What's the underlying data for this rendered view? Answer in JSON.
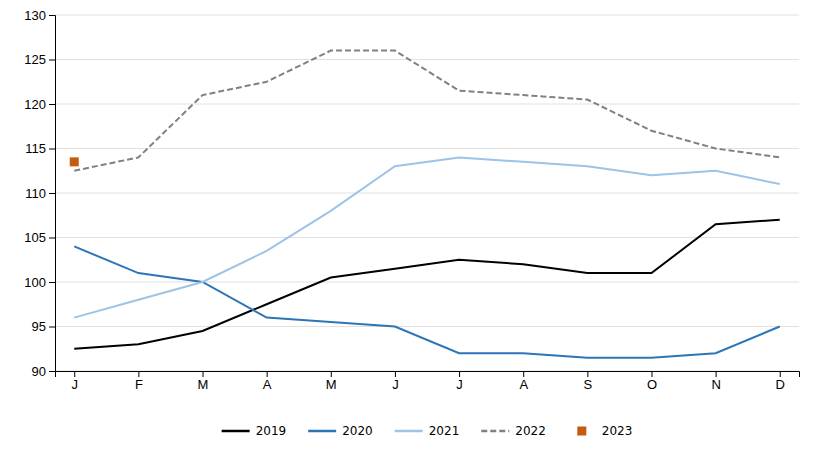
{
  "chart_data": {
    "type": "line",
    "categories": [
      "J",
      "F",
      "M",
      "A",
      "M",
      "J",
      "J",
      "A",
      "S",
      "O",
      "N",
      "D"
    ],
    "series": [
      {
        "name": "2019",
        "color": "#000000",
        "line_style": "solid",
        "values": [
          92.5,
          93.0,
          94.5,
          97.5,
          100.5,
          101.5,
          102.5,
          102.0,
          101.0,
          101.0,
          106.5,
          107.0
        ]
      },
      {
        "name": "2020",
        "color": "#2e75b6",
        "line_style": "solid",
        "values": [
          104.0,
          101.0,
          100.0,
          96.0,
          95.5,
          95.0,
          92.0,
          92.0,
          91.5,
          91.5,
          92.0,
          95.0
        ]
      },
      {
        "name": "2021",
        "color": "#9dc3e6",
        "line_style": "solid",
        "values": [
          96.0,
          98.0,
          100.0,
          103.5,
          108.0,
          113.0,
          114.0,
          113.5,
          113.0,
          112.0,
          112.5,
          111.0
        ]
      },
      {
        "name": "2022",
        "color": "#808080",
        "line_style": "dashed",
        "values": [
          112.5,
          114.0,
          121.0,
          122.5,
          126.0,
          126.0,
          121.5,
          121.0,
          120.5,
          117.0,
          115.0,
          114.0
        ]
      },
      {
        "name": "2023",
        "color": "#c55a11",
        "line_style": "none",
        "marker": "square",
        "values": [
          113.5,
          null,
          null,
          null,
          null,
          null,
          null,
          null,
          null,
          null,
          null,
          null
        ]
      }
    ],
    "ylim": [
      90,
      130
    ],
    "yticks": [
      90,
      95,
      100,
      105,
      110,
      115,
      120,
      125,
      130
    ],
    "grid": true,
    "legend": "bottom"
  }
}
